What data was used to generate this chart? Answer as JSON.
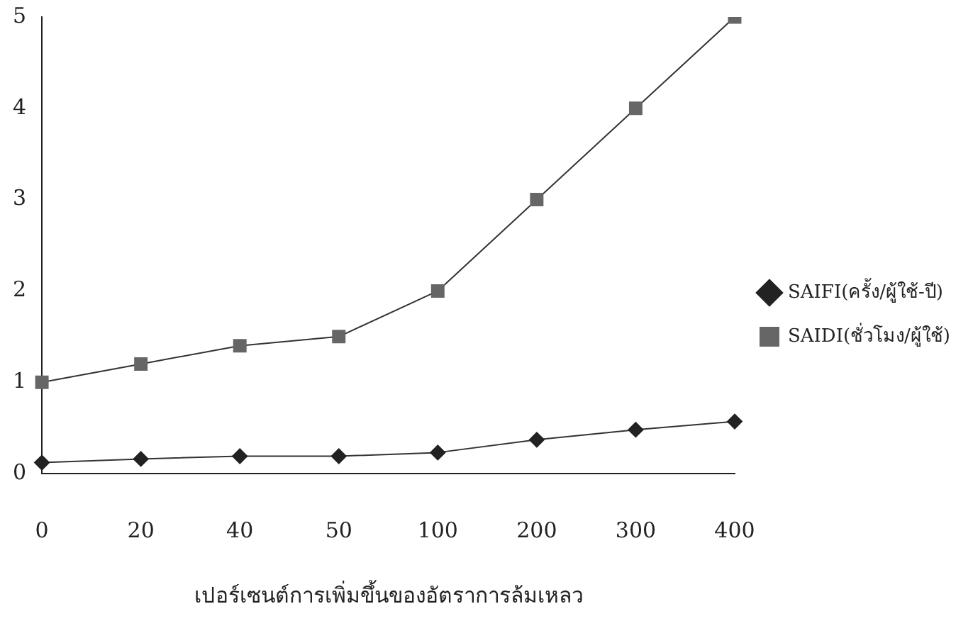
{
  "chart_data": {
    "type": "line",
    "xlabel": "เปอร์เซนต์การเพิ่มขึ้นของอัตราการล้มเหลว",
    "categories": [
      "0",
      "20",
      "40",
      "50",
      "100",
      "200",
      "300",
      "400"
    ],
    "series": [
      {
        "name": "SAIFI(ครั้ง/ผู้ใช้-ปี)",
        "color": "#222222",
        "marker": "diamond",
        "values": [
          0.12,
          0.16,
          0.19,
          0.19,
          0.23,
          0.37,
          0.48,
          0.57
        ]
      },
      {
        "name": "SAIDI(ชั่วโมง/ผู้ใช้)",
        "color": "#666666",
        "marker": "square",
        "values": [
          1.0,
          1.2,
          1.4,
          1.5,
          2.0,
          3.0,
          4.0,
          5.0
        ]
      }
    ],
    "ylim": [
      0,
      5
    ],
    "yticks": [
      0,
      1,
      2,
      3,
      4,
      5
    ],
    "grid": false,
    "legend": "right",
    "line_style": "solid"
  }
}
